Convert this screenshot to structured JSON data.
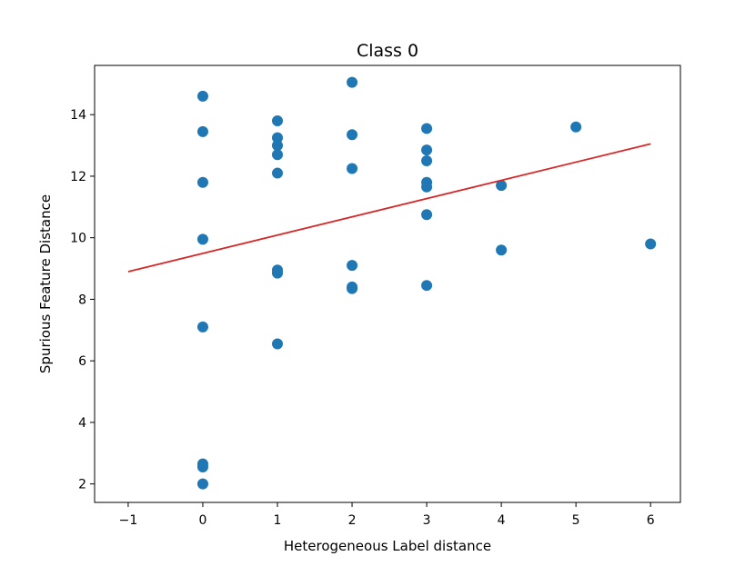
{
  "chart_data": {
    "type": "scatter",
    "title": "Class 0",
    "xlabel": "Heterogeneous Label distance",
    "ylabel": "Spurious Feature Distance",
    "xlim": [
      -1.45,
      6.4
    ],
    "ylim": [
      1.4,
      15.6
    ],
    "xticks": [
      -1,
      0,
      1,
      2,
      3,
      4,
      5,
      6
    ],
    "xtick_labels": [
      "−1",
      "0",
      "1",
      "2",
      "3",
      "4",
      "5",
      "6"
    ],
    "yticks": [
      2,
      4,
      6,
      8,
      10,
      12,
      14
    ],
    "ytick_labels": [
      "2",
      "4",
      "6",
      "8",
      "10",
      "12",
      "14"
    ],
    "grid": false,
    "series": [
      {
        "kind": "scatter",
        "color": "#1f77b4",
        "points": [
          {
            "x": 0,
            "y": 14.6
          },
          {
            "x": 0,
            "y": 13.45
          },
          {
            "x": 0,
            "y": 11.8
          },
          {
            "x": 0,
            "y": 9.95
          },
          {
            "x": 0,
            "y": 7.1
          },
          {
            "x": 0,
            "y": 2.65
          },
          {
            "x": 0,
            "y": 2.55
          },
          {
            "x": 0,
            "y": 2.0
          },
          {
            "x": 1,
            "y": 13.8
          },
          {
            "x": 1,
            "y": 13.25
          },
          {
            "x": 1,
            "y": 13.0
          },
          {
            "x": 1,
            "y": 12.7
          },
          {
            "x": 1,
            "y": 12.1
          },
          {
            "x": 1,
            "y": 8.95
          },
          {
            "x": 1,
            "y": 8.85
          },
          {
            "x": 1,
            "y": 6.55
          },
          {
            "x": 2,
            "y": 15.05
          },
          {
            "x": 2,
            "y": 13.35
          },
          {
            "x": 2,
            "y": 12.25
          },
          {
            "x": 2,
            "y": 9.1
          },
          {
            "x": 2,
            "y": 8.4
          },
          {
            "x": 2,
            "y": 8.35
          },
          {
            "x": 3,
            "y": 13.55
          },
          {
            "x": 3,
            "y": 12.85
          },
          {
            "x": 3,
            "y": 12.5
          },
          {
            "x": 3,
            "y": 11.8
          },
          {
            "x": 3,
            "y": 11.65
          },
          {
            "x": 3,
            "y": 10.75
          },
          {
            "x": 3,
            "y": 8.45
          },
          {
            "x": 4,
            "y": 11.7
          },
          {
            "x": 4,
            "y": 9.6
          },
          {
            "x": 5,
            "y": 13.6
          },
          {
            "x": 6,
            "y": 9.8
          }
        ]
      },
      {
        "kind": "line",
        "color": "#d62728",
        "points": [
          {
            "x": -1,
            "y": 8.9
          },
          {
            "x": 6,
            "y": 13.05
          }
        ]
      }
    ]
  }
}
